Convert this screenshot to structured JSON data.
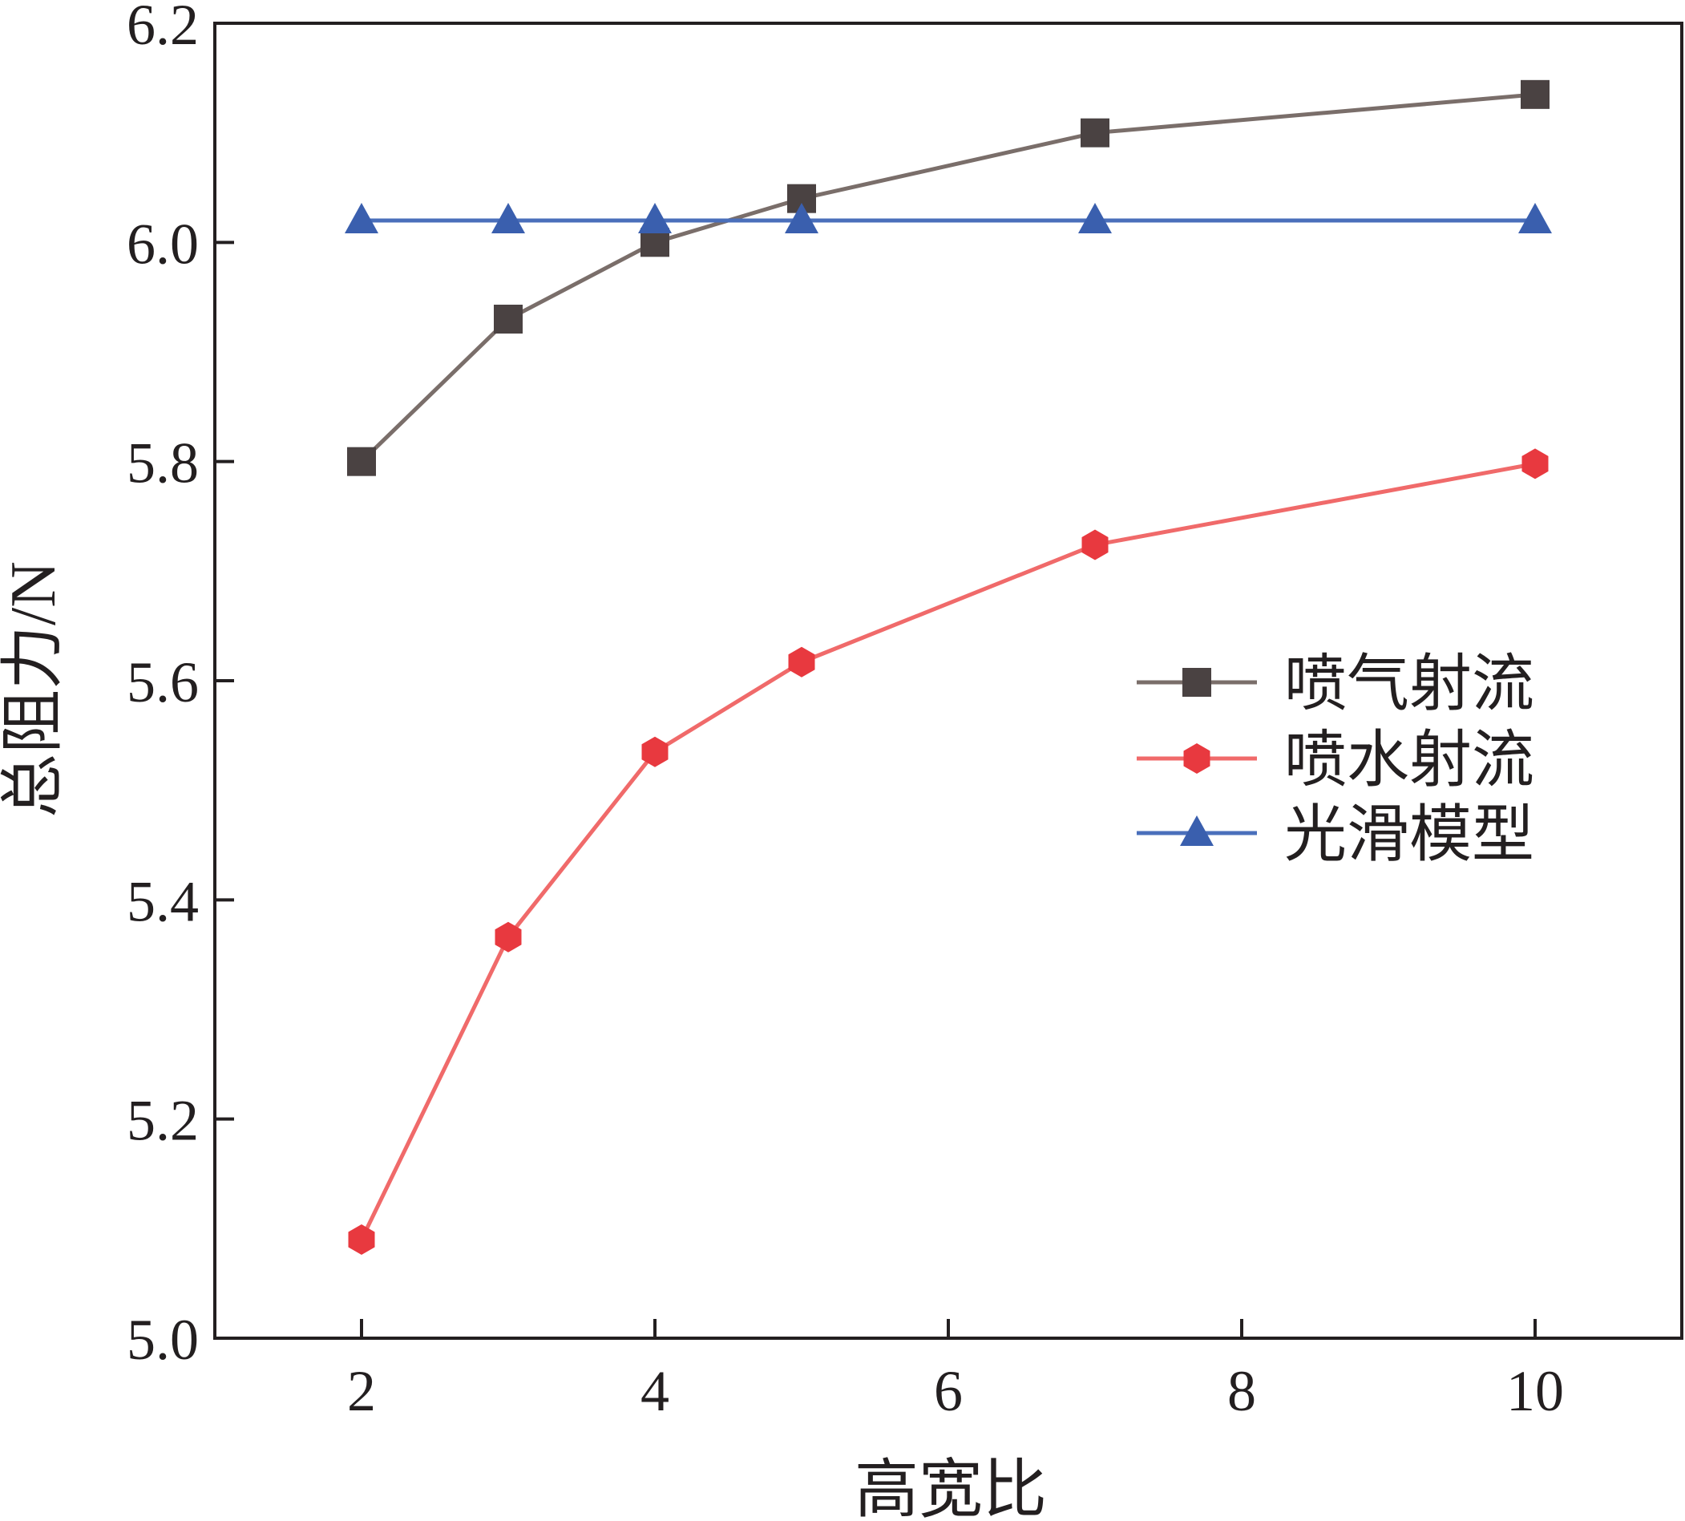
{
  "chart_data": {
    "type": "line",
    "title": "",
    "xlabel": "高宽比",
    "ylabel": "总阻力/N",
    "xlim": [
      1,
      11
    ],
    "ylim": [
      5.0,
      6.2
    ],
    "xticks": [
      2,
      4,
      6,
      8,
      10
    ],
    "xtick_labels": [
      "2",
      "4",
      "6",
      "8",
      "10"
    ],
    "yticks": [
      5.0,
      5.2,
      5.4,
      5.6,
      5.8,
      6.0,
      6.2
    ],
    "ytick_labels": [
      "5.0",
      "5.2",
      "5.4",
      "5.6",
      "5.8",
      "6.0",
      "6.2"
    ],
    "grid": false,
    "legend_position": "center-right",
    "x": [
      2,
      3,
      4,
      5,
      7,
      10
    ],
    "series": [
      {
        "name": "喷气射流",
        "color": "#4a4242",
        "line_color": "#7a6e6a",
        "marker": "square",
        "values": [
          5.8,
          5.93,
          6.0,
          6.04,
          6.1,
          6.135
        ]
      },
      {
        "name": "喷水射流",
        "color": "#e8393f",
        "line_color": "#f06a6a",
        "marker": "hexagon",
        "values": [
          5.09,
          5.366,
          5.535,
          5.617,
          5.724,
          5.798
        ]
      },
      {
        "name": "光滑模型",
        "color": "#3a5fae",
        "line_color": "#4a6fbb",
        "marker": "triangle",
        "values": [
          6.02,
          6.02,
          6.02,
          6.02,
          6.02,
          6.02
        ]
      }
    ]
  }
}
